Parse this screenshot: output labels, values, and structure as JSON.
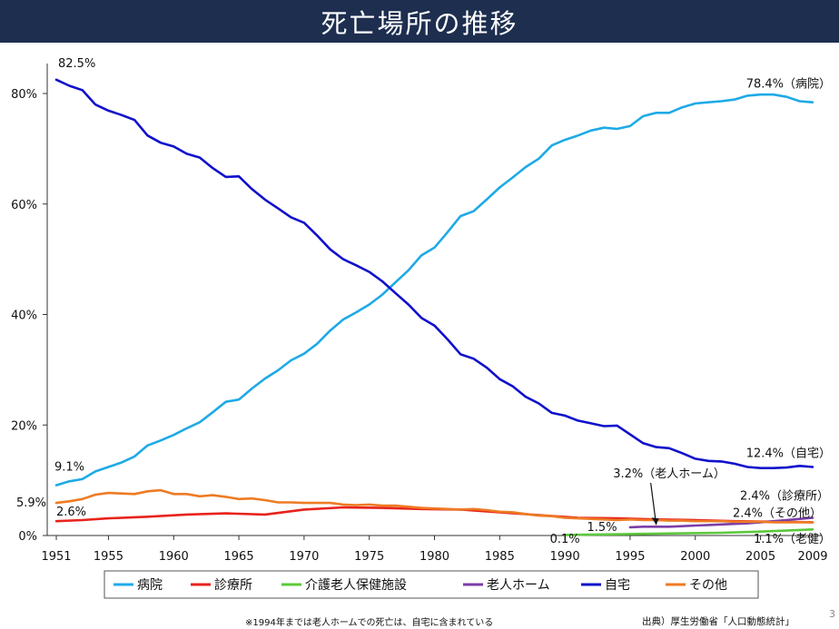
{
  "title": "死亡場所の推移",
  "footnote": "※1994年までは老人ホームでの死亡は、自宅に含まれている",
  "source": "出典）厚生労働省「人口動態統計」",
  "page_number": "3",
  "chart_data": {
    "type": "line",
    "title": "",
    "xlabel": "",
    "ylabel": "",
    "xlim": [
      1951,
      2009
    ],
    "ylim": [
      0,
      85
    ],
    "y_ticks": [
      0,
      20,
      40,
      60,
      80
    ],
    "y_tick_labels": [
      "0%",
      "20%",
      "40%",
      "60%",
      "80%"
    ],
    "x_ticks": [
      1951,
      1955,
      1960,
      1965,
      1970,
      1975,
      1980,
      1985,
      1990,
      1995,
      2000,
      2005,
      2009
    ],
    "grid": false,
    "legend_position": "bottom",
    "series": [
      {
        "name": "病院",
        "color": "#1eaae6",
        "x": [
          1951,
          1952,
          1953,
          1954,
          1955,
          1956,
          1957,
          1958,
          1959,
          1960,
          1961,
          1962,
          1963,
          1964,
          1965,
          1966,
          1967,
          1968,
          1969,
          1970,
          1971,
          1972,
          1973,
          1974,
          1975,
          1976,
          1977,
          1978,
          1979,
          1980,
          1981,
          1982,
          1983,
          1984,
          1985,
          1986,
          1987,
          1988,
          1989,
          1990,
          1991,
          1992,
          1993,
          1994,
          1995,
          1996,
          1997,
          1998,
          1999,
          2000,
          2001,
          2002,
          2003,
          2004,
          2005,
          2006,
          2007,
          2008,
          2009
        ],
        "y": [
          9.1,
          9.8,
          10.2,
          11.6,
          12.4,
          13.2,
          14.3,
          16.3,
          17.2,
          18.2,
          19.4,
          20.5,
          22.3,
          24.2,
          24.6,
          26.6,
          28.4,
          29.9,
          31.7,
          32.9,
          34.7,
          37.1,
          39.1,
          40.4,
          41.8,
          43.6,
          45.8,
          48.0,
          50.7,
          52.1,
          54.9,
          57.8,
          58.7,
          60.8,
          63.0,
          64.8,
          66.7,
          68.2,
          70.6,
          71.6,
          72.4,
          73.3,
          73.8,
          73.6,
          74.1,
          75.9,
          76.5,
          76.5,
          77.5,
          78.2,
          78.4,
          78.6,
          78.9,
          79.6,
          79.8,
          79.8,
          79.4,
          78.6,
          78.4
        ]
      },
      {
        "name": "診療所",
        "color": "#e8231c",
        "x": [
          1951,
          1953,
          1955,
          1958,
          1961,
          1964,
          1967,
          1970,
          1973,
          1976,
          1979,
          1982,
          1985,
          1988,
          1991,
          1994,
          1997,
          2000,
          2003,
          2006,
          2009
        ],
        "y": [
          2.6,
          2.8,
          3.1,
          3.4,
          3.8,
          4.0,
          3.8,
          4.7,
          5.1,
          5.0,
          4.8,
          4.7,
          4.2,
          3.7,
          3.2,
          3.1,
          2.9,
          2.8,
          2.6,
          2.5,
          2.4
        ]
      },
      {
        "name": "介護老人保健施設",
        "color": "#5cc83c",
        "x": [
          1990,
          1993,
          1996,
          1999,
          2002,
          2005,
          2008,
          2009
        ],
        "y": [
          0.1,
          0.2,
          0.3,
          0.4,
          0.5,
          0.7,
          1.0,
          1.1
        ]
      },
      {
        "name": "老人ホーム",
        "color": "#7b3ea8",
        "x": [
          1995,
          1996,
          1997,
          1998,
          1999,
          2000,
          2001,
          2002,
          2003,
          2004,
          2005,
          2006,
          2007,
          2008,
          2009
        ],
        "y": [
          1.5,
          1.6,
          1.6,
          1.6,
          1.7,
          1.8,
          1.9,
          2.0,
          2.1,
          2.2,
          2.4,
          2.6,
          2.8,
          3.0,
          3.2
        ]
      },
      {
        "name": "自宅",
        "color": "#1010cc",
        "x": [
          1951,
          1952,
          1953,
          1954,
          1955,
          1956,
          1957,
          1958,
          1959,
          1960,
          1961,
          1962,
          1963,
          1964,
          1965,
          1966,
          1967,
          1968,
          1969,
          1970,
          1971,
          1972,
          1973,
          1974,
          1975,
          1976,
          1977,
          1978,
          1979,
          1980,
          1981,
          1982,
          1983,
          1984,
          1985,
          1986,
          1987,
          1988,
          1989,
          1990,
          1991,
          1992,
          1993,
          1994,
          1995,
          1996,
          1997,
          1998,
          1999,
          2000,
          2001,
          2002,
          2003,
          2004,
          2005,
          2006,
          2007,
          2008,
          2009
        ],
        "y": [
          82.5,
          81.4,
          80.6,
          78.0,
          76.9,
          76.1,
          75.2,
          72.4,
          71.1,
          70.4,
          69.1,
          68.4,
          66.5,
          64.9,
          65.0,
          62.7,
          60.8,
          59.2,
          57.6,
          56.6,
          54.3,
          51.8,
          50.0,
          48.9,
          47.7,
          46.0,
          43.9,
          41.8,
          39.4,
          38.0,
          35.5,
          32.8,
          32.0,
          30.4,
          28.3,
          27.0,
          25.1,
          23.9,
          22.2,
          21.7,
          20.8,
          20.3,
          19.8,
          19.9,
          18.3,
          16.7,
          16.0,
          15.8,
          14.9,
          13.9,
          13.5,
          13.4,
          13.0,
          12.4,
          12.2,
          12.2,
          12.3,
          12.6,
          12.4
        ]
      },
      {
        "name": "その他",
        "color": "#ee7b24",
        "x": [
          1951,
          1952,
          1953,
          1954,
          1955,
          1956,
          1957,
          1958,
          1959,
          1960,
          1961,
          1962,
          1963,
          1964,
          1965,
          1966,
          1967,
          1968,
          1969,
          1970,
          1971,
          1972,
          1973,
          1974,
          1975,
          1976,
          1977,
          1978,
          1979,
          1980,
          1981,
          1982,
          1983,
          1984,
          1985,
          1986,
          1987,
          1988,
          1989,
          1990,
          1991,
          1992,
          1993,
          1994,
          1995,
          1996,
          1997,
          1998,
          1999,
          2000,
          2001,
          2002,
          2003,
          2004,
          2005,
          2006,
          2007,
          2008,
          2009
        ],
        "y": [
          5.9,
          6.2,
          6.6,
          7.4,
          7.7,
          7.6,
          7.5,
          8.0,
          8.2,
          7.5,
          7.5,
          7.1,
          7.3,
          7.0,
          6.6,
          6.7,
          6.4,
          6.0,
          6.0,
          5.9,
          5.9,
          5.9,
          5.6,
          5.5,
          5.6,
          5.4,
          5.4,
          5.2,
          5.0,
          4.9,
          4.8,
          4.7,
          4.8,
          4.6,
          4.3,
          4.2,
          3.9,
          3.6,
          3.5,
          3.2,
          3.1,
          3.0,
          2.9,
          2.8,
          2.9,
          2.8,
          2.8,
          2.7,
          2.7,
          2.6,
          2.6,
          2.6,
          2.5,
          2.5,
          2.5,
          2.4,
          2.4,
          2.4,
          2.4
        ]
      }
    ],
    "annotations": [
      {
        "id": "a-825",
        "text": "82.5%",
        "x": 1951,
        "y": 82.5,
        "anchor": "start",
        "dx": 2,
        "dy": -14
      },
      {
        "id": "a-91",
        "text": "9.1%",
        "x": 1951,
        "y": 9.1,
        "anchor": "start",
        "dx": -2,
        "dy": -16
      },
      {
        "id": "a-59",
        "text": "5.9%",
        "x": 1951,
        "y": 5.9,
        "anchor": "start",
        "dx": -44,
        "dy": 4
      },
      {
        "id": "a-26",
        "text": "2.6%",
        "x": 1951,
        "y": 2.6,
        "anchor": "start",
        "dx": 0,
        "dy": -6
      },
      {
        "id": "a-784",
        "text": "78.4%（病院）",
        "x": 2009,
        "y": 78.4,
        "anchor": "end",
        "dx": 20,
        "dy": -16
      },
      {
        "id": "a-124",
        "text": "12.4%（自宅）",
        "x": 2009,
        "y": 12.4,
        "anchor": "end",
        "dx": 20,
        "dy": -11
      },
      {
        "id": "a-32",
        "text": "3.2%（老人ホーム）",
        "x": 1998,
        "y": 10.5,
        "anchor": "middle",
        "dx": 0,
        "dy": 0
      },
      {
        "id": "a-15",
        "text": "1.5%",
        "x": 1994,
        "y": 1.5,
        "anchor": "end",
        "dx": 0,
        "dy": 4
      },
      {
        "id": "a-24a",
        "text": "2.4%（診療所）",
        "x": 2009,
        "y": 6.5,
        "anchor": "end",
        "dx": 18,
        "dy": 0
      },
      {
        "id": "a-24b",
        "text": "2.4%（その他）",
        "x": 2009,
        "y": 3.4,
        "anchor": "end",
        "dx": 10,
        "dy": 0
      },
      {
        "id": "a-01",
        "text": "0.1%",
        "x": 1990,
        "y": -1.3,
        "anchor": "middle",
        "dx": 0,
        "dy": 0
      },
      {
        "id": "a-11",
        "text": "1.1%（老健）",
        "x": 2009,
        "y": -1.3,
        "anchor": "end",
        "dx": 20,
        "dy": 0
      }
    ]
  }
}
